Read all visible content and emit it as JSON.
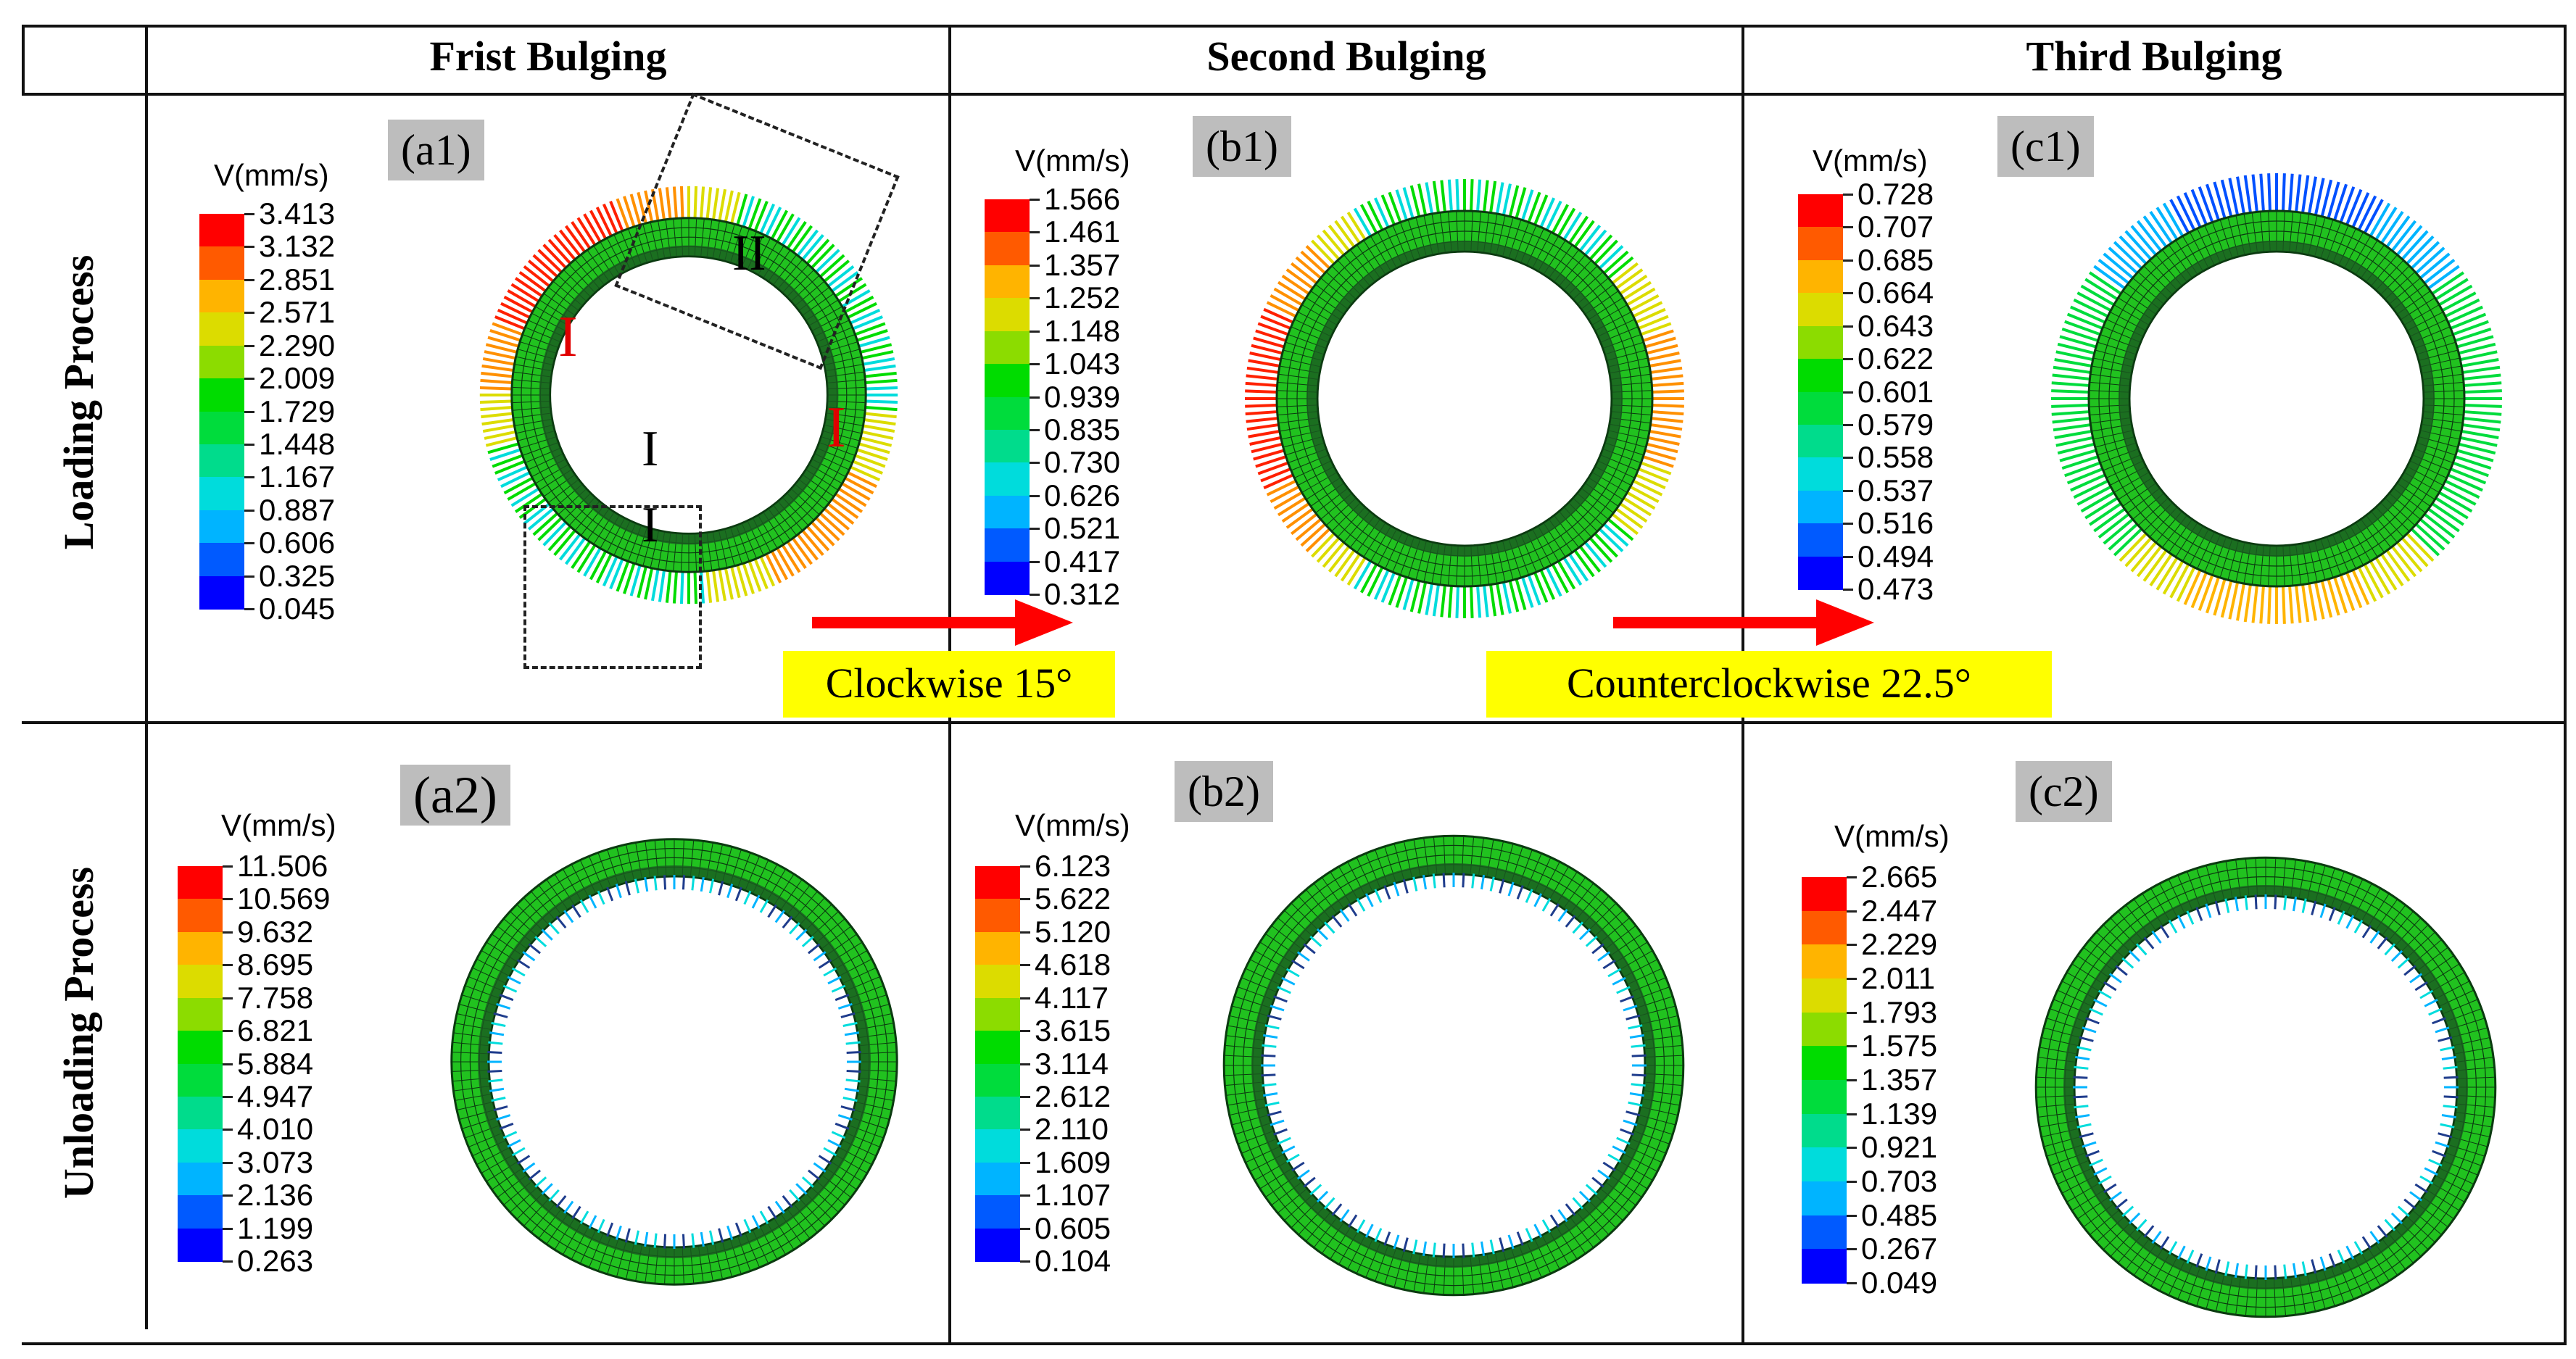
{
  "columns": [
    "Frist Bulging",
    "Second Bulging",
    "Third Bulging"
  ],
  "rows": [
    "Loading Process",
    "Unloading Process"
  ],
  "unit_label": "V(mm/s)",
  "panels": {
    "a1": {
      "tag": "(a1)",
      "ticks": [
        "3.413",
        "3.132",
        "2.851",
        "2.571",
        "2.290",
        "2.009",
        "1.729",
        "1.448",
        "1.167",
        "0.887",
        "0.606",
        "0.325",
        "0.045"
      ]
    },
    "b1": {
      "tag": "(b1)",
      "ticks": [
        "1.566",
        "1.461",
        "1.357",
        "1.252",
        "1.148",
        "1.043",
        "0.939",
        "0.835",
        "0.730",
        "0.626",
        "0.521",
        "0.417",
        "0.312"
      ]
    },
    "c1": {
      "tag": "(c1)",
      "ticks": [
        "0.728",
        "0.707",
        "0.685",
        "0.664",
        "0.643",
        "0.622",
        "0.601",
        "0.579",
        "0.558",
        "0.537",
        "0.516",
        "0.494",
        "0.473"
      ]
    },
    "a2": {
      "tag": "(a2)",
      "ticks": [
        "11.506",
        "10.569",
        "9.632",
        "8.695",
        "7.758",
        "6.821",
        "5.884",
        "4.947",
        "4.010",
        "3.073",
        "2.136",
        "1.199",
        "0.263"
      ]
    },
    "b2": {
      "tag": "(b2)",
      "ticks": [
        "6.123",
        "5.622",
        "5.120",
        "4.618",
        "4.117",
        "3.615",
        "3.114",
        "2.612",
        "2.110",
        "1.609",
        "1.107",
        "0.605",
        "0.104"
      ]
    },
    "c2": {
      "tag": "(c2)",
      "ticks": [
        "2.665",
        "2.447",
        "2.229",
        "2.011",
        "1.793",
        "1.575",
        "1.357",
        "1.139",
        "0.921",
        "0.703",
        "0.485",
        "0.267",
        "0.049"
      ]
    }
  },
  "markers": {
    "I_left": "I",
    "I_right": "I",
    "II_top": "II",
    "I_center_top": "I",
    "I_center_bottom": "I"
  },
  "rotation_notes": {
    "first": "Clockwise 15°",
    "second": "Counterclockwise 22.5°"
  },
  "colormap": [
    "#ff0000",
    "#ff5a00",
    "#ffb400",
    "#dcdc00",
    "#8cdc00",
    "#00dc00",
    "#00dc3c",
    "#00dc8c",
    "#00dcdc",
    "#00b4ff",
    "#005aff",
    "#0000ff"
  ],
  "colors": {
    "mesh_green": "#21c21f",
    "mesh_dark": "#0b3a10",
    "note_bg": "#ffff00",
    "arrow": "#ff0000",
    "tag_bg": "#bdbdbd"
  }
}
